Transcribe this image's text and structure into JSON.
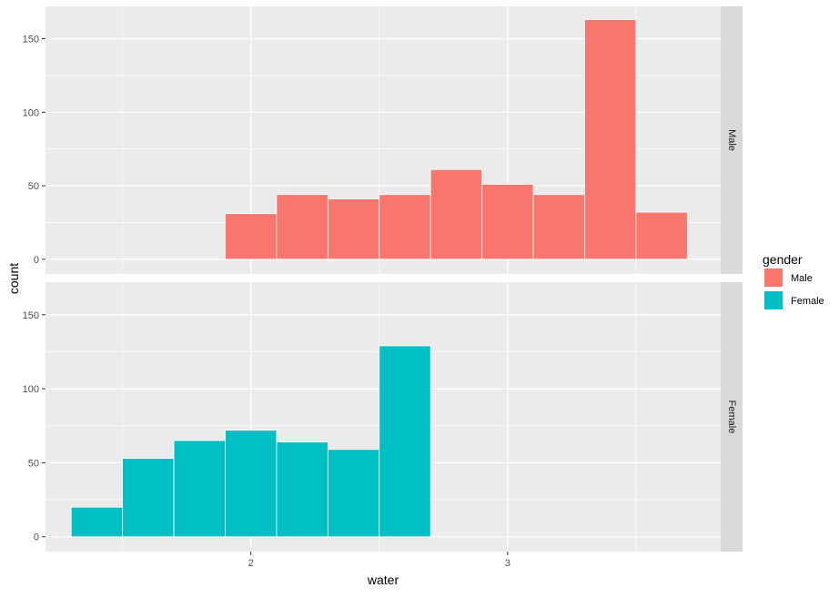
{
  "chart_data": {
    "type": "bar",
    "subtype": "faceted-histogram",
    "xlabel": "water",
    "ylabel": "count",
    "x_ticks": [
      2,
      3
    ],
    "y_ticks": [
      0,
      50,
      100,
      150
    ],
    "xlim": [
      1.2,
      3.83
    ],
    "ylim": [
      -10,
      172
    ],
    "grid": true,
    "legend": {
      "title": "gender",
      "position": "right",
      "entries": [
        "Male",
        "Female"
      ]
    },
    "colors": {
      "Male": "#F8766D",
      "Female": "#00BFC4"
    },
    "bin_width": 0.2,
    "facets": [
      {
        "strip_label": "Male",
        "series": "Male",
        "bins": [
          {
            "x0": 1.9,
            "x1": 2.1,
            "count": 31
          },
          {
            "x0": 2.1,
            "x1": 2.3,
            "count": 44
          },
          {
            "x0": 2.3,
            "x1": 2.5,
            "count": 41
          },
          {
            "x0": 2.5,
            "x1": 2.7,
            "count": 44
          },
          {
            "x0": 2.7,
            "x1": 2.9,
            "count": 61
          },
          {
            "x0": 2.9,
            "x1": 3.1,
            "count": 51
          },
          {
            "x0": 3.1,
            "x1": 3.3,
            "count": 44
          },
          {
            "x0": 3.3,
            "x1": 3.5,
            "count": 163
          },
          {
            "x0": 3.5,
            "x1": 3.7,
            "count": 32
          }
        ]
      },
      {
        "strip_label": "Female",
        "series": "Female",
        "bins": [
          {
            "x0": 1.3,
            "x1": 1.5,
            "count": 20
          },
          {
            "x0": 1.5,
            "x1": 1.7,
            "count": 53
          },
          {
            "x0": 1.7,
            "x1": 1.9,
            "count": 65
          },
          {
            "x0": 1.9,
            "x1": 2.1,
            "count": 72
          },
          {
            "x0": 2.1,
            "x1": 2.3,
            "count": 64
          },
          {
            "x0": 2.3,
            "x1": 2.5,
            "count": 59
          },
          {
            "x0": 2.5,
            "x1": 2.7,
            "count": 129
          }
        ]
      }
    ]
  }
}
